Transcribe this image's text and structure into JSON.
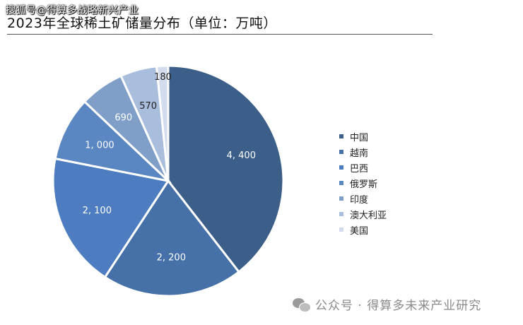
{
  "watermark_top": "搜狐号@得算多战略新兴产业",
  "watermark_bottom": "公众号 · 得算多未来产业研究",
  "icons": {
    "watermark_bottom": "wechat-icon"
  },
  "chart_data": {
    "type": "pie",
    "title": "2023年全球稀土矿储量分布（单位：万吨）",
    "categories": [
      "中国",
      "越南",
      "巴西",
      "俄罗斯",
      "印度",
      "澳大利亚",
      "美国"
    ],
    "values": [
      4400,
      2200,
      2100,
      1000,
      690,
      570,
      180
    ],
    "value_labels": [
      "4, 400",
      "2, 200",
      "2, 100",
      "1, 000",
      "690",
      "570",
      "180"
    ],
    "colors": [
      "#3c5f8a",
      "#4570a8",
      "#4d7dc0",
      "#5a86c2",
      "#7f9ec8",
      "#a9bedd",
      "#d2dcec"
    ],
    "start": "12 o'clock",
    "direction": "clockwise",
    "legend_position": "right"
  }
}
